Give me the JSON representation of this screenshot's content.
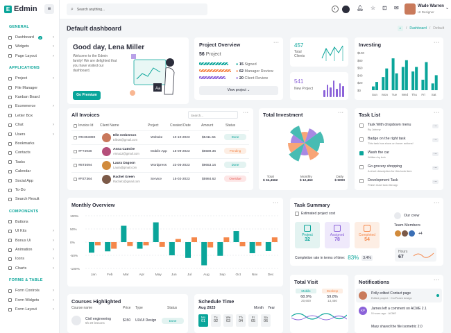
{
  "app": {
    "name": "Edmin"
  },
  "search": {
    "placeholder": "Search anything..."
  },
  "user": {
    "name": "Wade Warren",
    "role": "UI Designer"
  },
  "page": {
    "title": "Default dashboard",
    "breadcrumb": [
      "Dashboard",
      "Default"
    ]
  },
  "sidebar": {
    "sections": [
      {
        "title": "GENERAL",
        "items": [
          {
            "label": "Dashboard",
            "badge": "2",
            "chev": true
          },
          {
            "label": "Widgets",
            "chev": true
          },
          {
            "label": "Page Layout",
            "chev": true
          }
        ]
      },
      {
        "title": "APPLICATIONS",
        "items": [
          {
            "label": "Project",
            "chev": true
          },
          {
            "label": "File Manager"
          },
          {
            "label": "Kanban Board"
          },
          {
            "label": "Ecommerce",
            "chev": true
          },
          {
            "label": "Letter Box"
          },
          {
            "label": "Chat",
            "chev": true
          },
          {
            "label": "Users",
            "chev": true
          },
          {
            "label": "Bookmarks"
          },
          {
            "label": "Contacts"
          },
          {
            "label": "Tasks"
          },
          {
            "label": "Calendar"
          },
          {
            "label": "Social App"
          },
          {
            "label": "To-Do"
          },
          {
            "label": "Search Result"
          }
        ]
      },
      {
        "title": "COMPONENTS",
        "items": [
          {
            "label": "Buttons"
          },
          {
            "label": "UI Kits",
            "chev": true
          },
          {
            "label": "Bonus Ui",
            "chev": true
          },
          {
            "label": "Animation",
            "chev": true
          },
          {
            "label": "Icons",
            "chev": true
          },
          {
            "label": "Charts",
            "chev": true
          }
        ]
      },
      {
        "title": "FORMS & TABLE",
        "items": [
          {
            "label": "Form Controls",
            "chev": true
          },
          {
            "label": "Form Widgets",
            "chev": true
          },
          {
            "label": "Form Layout",
            "chev": true
          }
        ]
      }
    ]
  },
  "welcome": {
    "greeting": "Good day, Lena Miller",
    "text": "Welcome to the Edmin family! We are delighted that you have visited our dashboard.",
    "button": "Go Premium"
  },
  "project_overview": {
    "title": "Project Overview",
    "count": "56",
    "count_label": "Project",
    "stats": [
      {
        "value": "15",
        "label": "Signed"
      },
      {
        "value": "62",
        "label": "Manager Review"
      },
      {
        "value": "20",
        "label": "Client Review"
      }
    ],
    "button": "View project"
  },
  "clients": {
    "value": "457",
    "label": "Total Clients"
  },
  "new_project": {
    "value": "541",
    "label": "New Project"
  },
  "investing": {
    "title": "Investing",
    "chart_data": {
      "type": "bar",
      "categories": [
        "Sun",
        "Mon",
        "Tue",
        "Wed",
        "Thu",
        "Fri",
        "Sat"
      ],
      "ylabels": [
        "$100",
        "$80",
        "$60",
        "$40",
        "$20",
        "$0"
      ],
      "ylim": [
        0,
        100
      ],
      "series": [
        {
          "values": [
            10,
            35,
            85,
            62,
            50,
            28,
            18
          ]
        },
        {
          "values": [
            22,
            58,
            45,
            80,
            62,
            75,
            40
          ]
        }
      ]
    }
  },
  "invoices": {
    "title": "All Invoices",
    "search_placeholder": "Search...",
    "headers": [
      "Invoice Id",
      "Client Name",
      "Project",
      "Created Date",
      "Amount",
      "Status"
    ],
    "rows": [
      {
        "id": "#INH53390",
        "name": "Elle Amberson",
        "email": "Elle36@gmail.com",
        "project": "Website",
        "date": "10-10-2023",
        "amount": "$5411.55",
        "status": "Done",
        "color": "#c9785c"
      },
      {
        "id": "#FT4948",
        "name": "Anna Catmire",
        "email": "Anna12@gmail.com",
        "project": "Mobile App",
        "date": "15-09-2023",
        "amount": "$6589.36",
        "status": "Pending",
        "color": "#b54f7a"
      },
      {
        "id": "#BT3094",
        "name": "Laura Dagson",
        "email": "Laura@gmail.com",
        "project": "Wordpress",
        "date": "23-05-2023",
        "amount": "$9653.16",
        "status": "Done",
        "color": "#d18a3b"
      },
      {
        "id": "#PZ7364",
        "name": "Rachel Green",
        "email": "Rachel1@gmail.com",
        "project": "Service",
        "date": "15-02-2023",
        "amount": "$5984.62",
        "status": "Overdue",
        "color": "#7c5a48"
      }
    ]
  },
  "investment": {
    "title": "Total Investment",
    "stats": [
      {
        "label": "Total",
        "value": "$ 34,4562"
      },
      {
        "label": "Monthly",
        "value": "$ 12,463"
      },
      {
        "label": "Daily",
        "value": "$ 5000"
      }
    ]
  },
  "tasks": {
    "title": "Task List",
    "items": [
      {
        "title": "Task With dropdown menu",
        "sub": "By Johnny",
        "checked": false
      },
      {
        "title": "Badge on the right task",
        "sub": "This task has show on hover actions!",
        "checked": false
      },
      {
        "title": "Wash the car",
        "sub": "Written by bob",
        "checked": true
      },
      {
        "title": "Go grocery shopping",
        "sub": "A short description for this todo item",
        "checked": false
      },
      {
        "title": "Development Task",
        "sub": "Finish react todo list app",
        "checked": false
      }
    ]
  },
  "monthly": {
    "title": "Monthly Overview",
    "chart_data": {
      "type": "bar",
      "categories": [
        "Jan",
        "Feb",
        "Mar",
        "Apr",
        "May",
        "Jun",
        "Jul",
        "Aug",
        "Sep",
        "Oct",
        "Nov",
        "Dec"
      ],
      "ylabels": [
        "100%",
        "50%",
        "0%",
        "-50%",
        "-100%"
      ],
      "ylim": [
        -100,
        100
      ],
      "series": [
        {
          "name": "teal",
          "values": [
            -40,
            -35,
            62,
            -25,
            75,
            -50,
            -60,
            -88,
            -52,
            42,
            -42,
            -34
          ]
        },
        {
          "name": "orange",
          "values": [
            -12,
            -25,
            -15,
            -12,
            -18,
            12,
            18,
            -20,
            18,
            -16,
            -14,
            18
          ]
        }
      ]
    }
  },
  "summary": {
    "title": "Task Summary",
    "checkbox": "Estimated project cost",
    "boxes": [
      {
        "label": "Project",
        "value": "32"
      },
      {
        "label": "Assigned",
        "value": "78"
      },
      {
        "label": "Completed",
        "value": "54"
      }
    ],
    "crew": "Our crew",
    "team": "Team Members",
    "more": "+4",
    "hours_label": "Hours",
    "hours": "67",
    "rate_label": "Completion rate in terms of time:",
    "rate": "83%",
    "rate_delta": "3.4%"
  },
  "courses": {
    "title": "Courses Highlighted",
    "headers": [
      "Course name",
      "Price",
      "Type",
      "Status"
    ],
    "row": {
      "name": "Civil engineering",
      "sub": "5h 20 lessons",
      "price": "$150",
      "type": "UX/UI Design",
      "status": "Done"
    }
  },
  "schedule": {
    "title": "Schedule Time",
    "month": "Aug 2023",
    "tabs": [
      "Month",
      "Year"
    ],
    "days": [
      {
        "d": "Mo",
        "n": "01"
      },
      {
        "d": "Tu",
        "n": "02"
      },
      {
        "d": "We",
        "n": "03"
      },
      {
        "d": "Th",
        "n": "04"
      },
      {
        "d": "Fr",
        "n": "05"
      },
      {
        "d": "Sa",
        "n": "06"
      }
    ]
  },
  "visit": {
    "title": "Total Visit",
    "mobile": {
      "label": "Mobile",
      "pct": "68.9%",
      "value": "20,600"
    },
    "desktop": {
      "label": "Desktop",
      "pct": "59.8%",
      "value": "13,450"
    }
  },
  "notifications": {
    "title": "Notifications",
    "items": [
      {
        "title": "Polly edited Contact page",
        "sub": "Edited project · CroPeaek design",
        "avatar": "PE"
      },
      {
        "title": "James left a comment on ACME 2.1",
        "sub": "5 hours ago · ACME",
        "avatar": "KP"
      },
      {
        "title": "Mary shared the file isometric 2.0",
        "sub": ""
      }
    ]
  },
  "colors": {
    "teal": "#0aa59a",
    "orange": "#f5874a",
    "purple": "#8b62d9"
  }
}
